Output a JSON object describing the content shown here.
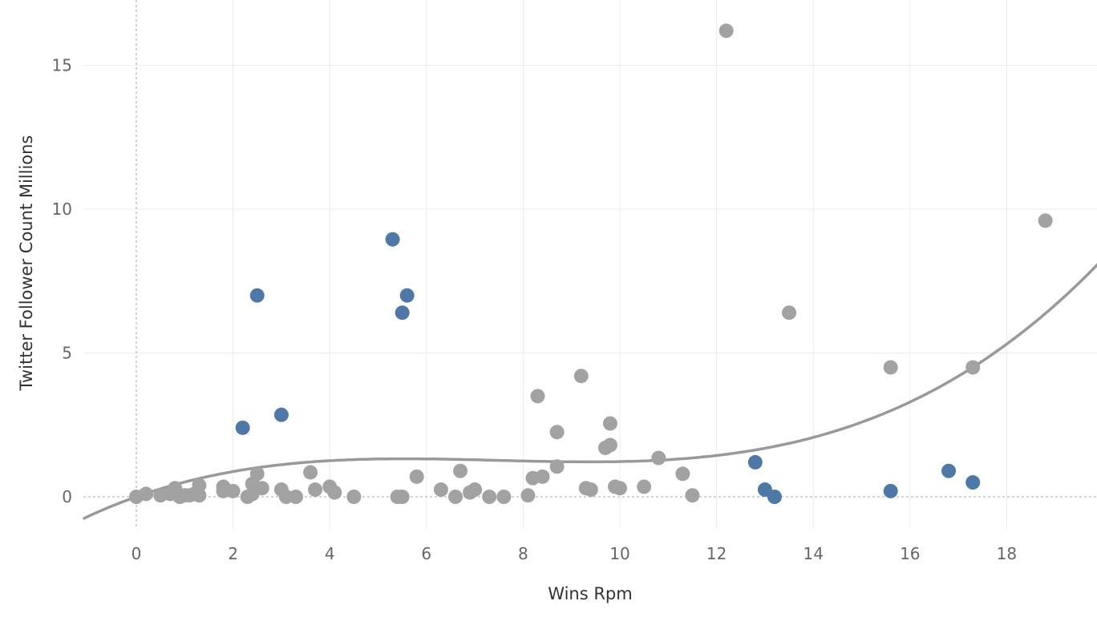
{
  "chart_data": {
    "type": "scatter",
    "xlabel": "Wins Rpm",
    "ylabel": "Twitter Follower Count Millions",
    "xlim": [
      -1.1,
      19.9
    ],
    "ylim": [
      -1.1,
      17.0
    ],
    "x_ticks": [
      "0",
      "2",
      "4",
      "6",
      "8",
      "10",
      "12",
      "14",
      "16",
      "18"
    ],
    "y_ticks": [
      "0",
      "5",
      "10",
      "15"
    ],
    "grid": true,
    "legend": "none",
    "colors": {
      "default": "#a2a2a2",
      "highlight": "#4e79a7",
      "trend": "#999999"
    },
    "series": [
      {
        "points": [
          [
            0.0,
            0.0
          ],
          [
            0.2,
            0.1
          ],
          [
            0.5,
            0.05
          ],
          [
            0.7,
            0.1
          ],
          [
            0.8,
            0.3
          ],
          [
            0.9,
            0.0
          ],
          [
            1.0,
            0.05
          ],
          [
            1.1,
            0.05
          ],
          [
            1.2,
            0.1
          ],
          [
            1.3,
            0.4
          ],
          [
            1.3,
            0.05
          ],
          [
            1.8,
            0.35
          ],
          [
            1.8,
            0.2
          ],
          [
            2.0,
            0.2
          ],
          [
            2.3,
            0.0
          ],
          [
            2.4,
            0.1
          ],
          [
            2.4,
            0.45
          ],
          [
            2.5,
            0.8
          ],
          [
            2.6,
            0.3
          ],
          [
            3.0,
            0.25
          ],
          [
            3.1,
            0.0
          ],
          [
            3.3,
            0.0
          ],
          [
            3.6,
            0.85
          ],
          [
            3.7,
            0.25
          ],
          [
            4.0,
            0.35
          ],
          [
            4.1,
            0.15
          ],
          [
            4.5,
            0.0
          ],
          [
            5.4,
            0.0
          ],
          [
            5.5,
            0.0
          ],
          [
            5.8,
            0.7
          ],
          [
            6.3,
            0.25
          ],
          [
            6.6,
            0.0
          ],
          [
            6.7,
            0.9
          ],
          [
            6.9,
            0.15
          ],
          [
            7.0,
            0.25
          ],
          [
            7.3,
            0.0
          ],
          [
            7.6,
            0.0
          ],
          [
            8.1,
            0.05
          ],
          [
            8.2,
            0.65
          ],
          [
            8.3,
            3.5
          ],
          [
            8.4,
            0.7
          ],
          [
            8.7,
            1.05
          ],
          [
            8.7,
            2.25
          ],
          [
            9.2,
            4.2
          ],
          [
            9.3,
            0.3
          ],
          [
            9.4,
            0.25
          ],
          [
            9.7,
            1.7
          ],
          [
            9.8,
            2.55
          ],
          [
            9.8,
            1.8
          ],
          [
            9.9,
            0.35
          ],
          [
            10.0,
            0.3
          ],
          [
            10.5,
            0.35
          ],
          [
            10.8,
            1.35
          ],
          [
            11.3,
            0.8
          ],
          [
            11.5,
            0.05
          ],
          [
            12.2,
            16.2
          ],
          [
            13.5,
            6.4
          ],
          [
            15.6,
            4.5
          ],
          [
            17.3,
            4.5
          ],
          [
            18.8,
            9.6
          ]
        ]
      },
      {
        "points": [
          [
            2.2,
            2.4
          ],
          [
            2.5,
            7.0
          ],
          [
            3.0,
            2.85
          ],
          [
            5.3,
            8.95
          ],
          [
            5.5,
            6.4
          ],
          [
            5.6,
            7.0
          ],
          [
            12.8,
            1.2
          ],
          [
            13.0,
            0.25
          ],
          [
            13.2,
            0.0
          ],
          [
            15.6,
            0.2
          ],
          [
            16.8,
            0.9
          ],
          [
            17.3,
            0.5
          ]
        ]
      }
    ],
    "trend_line": {
      "type": "polynomial",
      "coefficients": [
        0.0,
        0.5944,
        -0.0854,
        0.00382
      ]
    }
  }
}
